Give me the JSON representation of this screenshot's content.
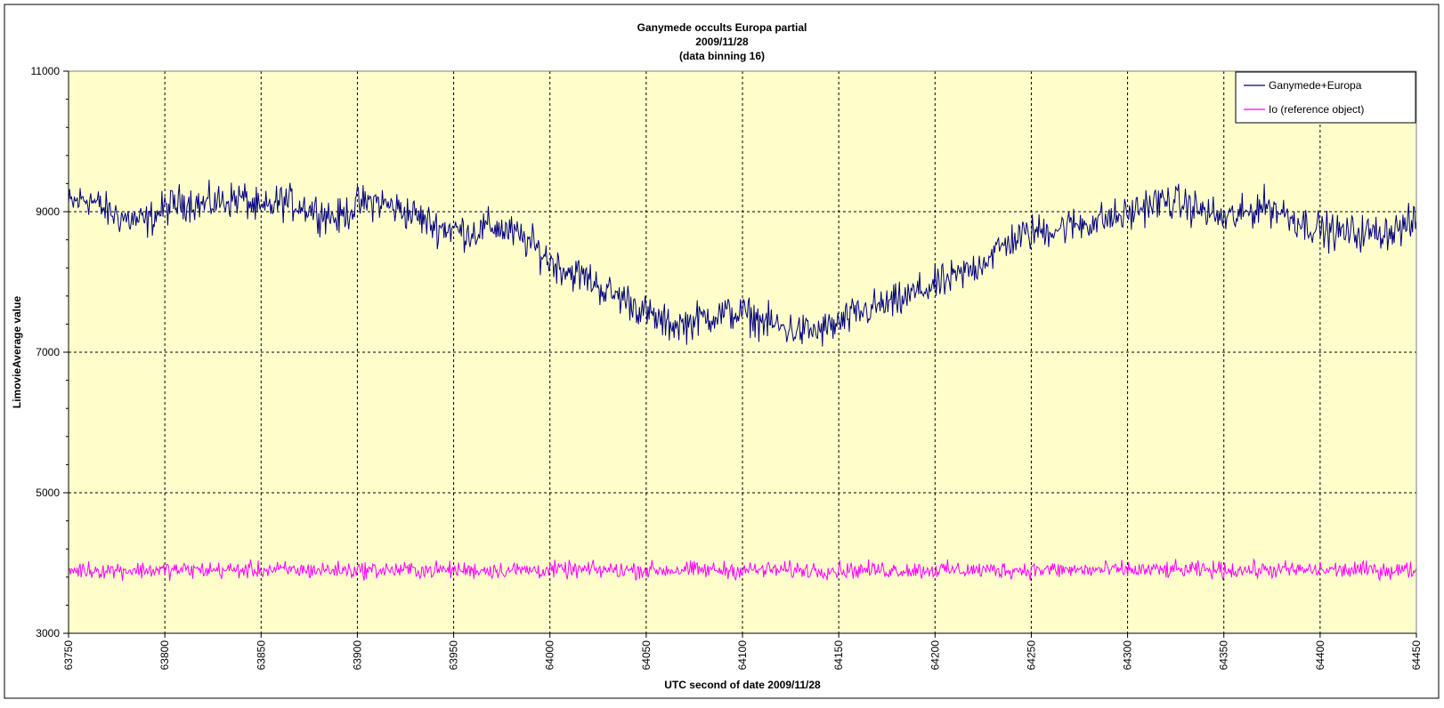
{
  "chart_data": {
    "type": "line",
    "title": [
      "Ganymede occults Europa partial",
      "2009/11/28",
      "(data binning 16)"
    ],
    "xlabel": "UTC second  of date 2009/11/28",
    "ylabel": "LimovieAverage value",
    "xlim": [
      63750,
      64450
    ],
    "ylim": [
      3000,
      11000
    ],
    "x_ticks": [
      63750,
      63800,
      63850,
      63900,
      63950,
      64000,
      64050,
      64100,
      64150,
      64200,
      64250,
      64300,
      64350,
      64400,
      64450
    ],
    "x_tick_labels": [
      "63750",
      "63800",
      "63850",
      "63900",
      "63950",
      "64000",
      "64050",
      "64100",
      "64150",
      "64200",
      "64250",
      "64300",
      "64350",
      "64400",
      "64450"
    ],
    "y_major_ticks": [
      3000,
      5000,
      7000,
      9000,
      11000
    ],
    "y_tick_labels": [
      "3000",
      "5000",
      "7000",
      "9000",
      "11000"
    ],
    "y_minor_step": 400,
    "grid": true,
    "plot_background": "#FFFFCC",
    "legend_position": "top-right",
    "series": [
      {
        "name": "Ganymede+Europa",
        "color": "#000080",
        "x": [
          63750,
          63760,
          63770,
          63780,
          63790,
          63800,
          63810,
          63820,
          63830,
          63840,
          63850,
          63860,
          63870,
          63880,
          63890,
          63900,
          63910,
          63920,
          63930,
          63940,
          63950,
          63960,
          63970,
          63980,
          63990,
          64000,
          64010,
          64020,
          64030,
          64040,
          64050,
          64060,
          64070,
          64080,
          64090,
          64100,
          64110,
          64120,
          64130,
          64140,
          64150,
          64160,
          64170,
          64180,
          64190,
          64200,
          64210,
          64220,
          64230,
          64240,
          64250,
          64260,
          64270,
          64280,
          64290,
          64300,
          64310,
          64320,
          64330,
          64340,
          64350,
          64360,
          64370,
          64380,
          64390,
          64400,
          64410,
          64420,
          64430,
          64440,
          64450
        ],
        "values": [
          9100,
          9200,
          9000,
          8900,
          8850,
          9050,
          9150,
          9100,
          9150,
          9200,
          9000,
          9150,
          9100,
          9000,
          8900,
          9100,
          9150,
          9050,
          8950,
          8800,
          8750,
          8700,
          8800,
          8700,
          8550,
          8300,
          8150,
          8050,
          7850,
          7750,
          7550,
          7400,
          7400,
          7500,
          7550,
          7550,
          7450,
          7350,
          7300,
          7300,
          7400,
          7550,
          7650,
          7700,
          7850,
          7950,
          8050,
          8200,
          8400,
          8600,
          8700,
          8750,
          8800,
          8850,
          8900,
          8950,
          9100,
          9150,
          9100,
          9000,
          8900,
          8950,
          9100,
          9000,
          8850,
          8750,
          8700,
          8700,
          8700,
          8750,
          8850
        ],
        "noise_amplitude": 380
      },
      {
        "name": "Io (reference object)",
        "color": "#FF00FF",
        "x": [
          63750,
          64450
        ],
        "values": [
          3900,
          3900
        ],
        "noise_amplitude": 180
      }
    ]
  }
}
